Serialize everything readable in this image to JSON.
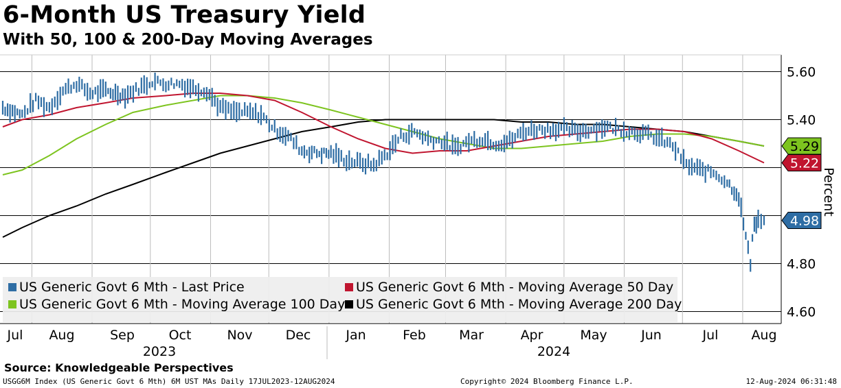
{
  "header": {
    "title": "6-Month US Treasury Yield",
    "subtitle": "With 50, 100 & 200-Day Moving Averages"
  },
  "footer": {
    "source": "Source: Knowledgeable Perspectives",
    "index_info": "USGG6M Index (US Generic Govt 6 Mth) 6M UST MAs  Daily 17JUL2023-12AUG2024",
    "copyright": "Copyright© 2024 Bloomberg Finance L.P.",
    "timestamp": "12-Aug-2024 06:31:48"
  },
  "colors": {
    "last_price": "#2e6da4",
    "ma50": "#c0152f",
    "ma100": "#7dc41f",
    "ma200": "#000000",
    "grid": "#000000"
  },
  "chart_data": {
    "type": "line",
    "title": "6-Month US Treasury Yield",
    "ylabel": "Percent",
    "ylim": [
      4.55,
      5.67
    ],
    "yticks": [
      5.6,
      5.4,
      5.2,
      5.0,
      4.8,
      4.6
    ],
    "ytick_labels": [
      "5.60",
      "5.40",
      "",
      "",
      "4.80",
      "4.60"
    ],
    "xlim": [
      "2023-07-17",
      "2024-08-12"
    ],
    "months": [
      {
        "label": "Jul",
        "date": "2023-07-17"
      },
      {
        "label": "Aug",
        "date": "2023-08-01"
      },
      {
        "label": "Sep",
        "date": "2023-09-01"
      },
      {
        "label": "Oct",
        "date": "2023-10-01"
      },
      {
        "label": "Nov",
        "date": "2023-11-01"
      },
      {
        "label": "Dec",
        "date": "2023-12-01"
      },
      {
        "label": "Jan",
        "date": "2024-01-01"
      },
      {
        "label": "Feb",
        "date": "2024-02-01"
      },
      {
        "label": "Mar",
        "date": "2024-03-01"
      },
      {
        "label": "Apr",
        "date": "2024-04-01"
      },
      {
        "label": "May",
        "date": "2024-05-01"
      },
      {
        "label": "Jun",
        "date": "2024-06-01"
      },
      {
        "label": "Jul",
        "date": "2024-07-01"
      },
      {
        "label": "Aug",
        "date": "2024-08-01"
      }
    ],
    "years": [
      {
        "label": "2023",
        "date": "2023-10-01"
      },
      {
        "label": "2024",
        "date": "2024-04-01"
      }
    ],
    "legend": [
      "US Generic Govt 6 Mth - Last Price",
      "US Generic Govt 6 Mth - Moving Average 50 Day",
      "US Generic Govt 6 Mth - Moving Average 100 Day",
      "US Generic Govt 6 Mth - Moving Average 200 Day"
    ],
    "end_labels": [
      {
        "series": "ma100",
        "value": "5.29"
      },
      {
        "series": "ma50",
        "value": "5.22"
      },
      {
        "series": "last_price",
        "value": "4.98"
      }
    ],
    "series": [
      {
        "name": "US Generic Govt 6 Mth - Last Price",
        "key": "last_price",
        "points": [
          [
            "2023-07-17",
            5.45
          ],
          [
            "2023-07-27",
            5.42
          ],
          [
            "2023-08-03",
            5.48
          ],
          [
            "2023-08-10",
            5.45
          ],
          [
            "2023-08-17",
            5.52
          ],
          [
            "2023-08-24",
            5.55
          ],
          [
            "2023-08-31",
            5.51
          ],
          [
            "2023-09-08",
            5.52
          ],
          [
            "2023-09-18",
            5.5
          ],
          [
            "2023-09-25",
            5.53
          ],
          [
            "2023-10-02",
            5.56
          ],
          [
            "2023-10-09",
            5.55
          ],
          [
            "2023-10-16",
            5.55
          ],
          [
            "2023-10-23",
            5.53
          ],
          [
            "2023-10-30",
            5.52
          ],
          [
            "2023-11-06",
            5.45
          ],
          [
            "2023-11-13",
            5.43
          ],
          [
            "2023-11-20",
            5.43
          ],
          [
            "2023-11-27",
            5.42
          ],
          [
            "2023-12-04",
            5.36
          ],
          [
            "2023-12-11",
            5.33
          ],
          [
            "2023-12-18",
            5.27
          ],
          [
            "2023-12-27",
            5.26
          ],
          [
            "2024-01-02",
            5.26
          ],
          [
            "2024-01-10",
            5.23
          ],
          [
            "2024-01-17",
            5.22
          ],
          [
            "2024-01-24",
            5.21
          ],
          [
            "2024-01-31",
            5.26
          ],
          [
            "2024-02-07",
            5.33
          ],
          [
            "2024-02-14",
            5.35
          ],
          [
            "2024-02-21",
            5.32
          ],
          [
            "2024-02-28",
            5.31
          ],
          [
            "2024-03-06",
            5.28
          ],
          [
            "2024-03-13",
            5.31
          ],
          [
            "2024-03-20",
            5.32
          ],
          [
            "2024-03-27",
            5.3
          ],
          [
            "2024-04-03",
            5.31
          ],
          [
            "2024-04-10",
            5.35
          ],
          [
            "2024-04-17",
            5.36
          ],
          [
            "2024-04-24",
            5.36
          ],
          [
            "2024-05-01",
            5.36
          ],
          [
            "2024-05-08",
            5.35
          ],
          [
            "2024-05-15",
            5.36
          ],
          [
            "2024-05-22",
            5.37
          ],
          [
            "2024-05-29",
            5.36
          ],
          [
            "2024-06-05",
            5.35
          ],
          [
            "2024-06-12",
            5.34
          ],
          [
            "2024-06-19",
            5.32
          ],
          [
            "2024-06-26",
            5.29
          ],
          [
            "2024-07-03",
            5.21
          ],
          [
            "2024-07-10",
            5.19
          ],
          [
            "2024-07-17",
            5.18
          ],
          [
            "2024-07-24",
            5.14
          ],
          [
            "2024-07-30",
            5.08
          ],
          [
            "2024-08-05",
            4.8
          ],
          [
            "2024-08-06",
            4.92
          ],
          [
            "2024-08-07",
            4.96
          ],
          [
            "2024-08-09",
            4.98
          ],
          [
            "2024-08-12",
            4.98
          ]
        ]
      },
      {
        "name": "US Generic Govt 6 Mth - Moving Average 50 Day",
        "key": "ma50",
        "points": [
          [
            "2023-07-17",
            5.37
          ],
          [
            "2023-07-27",
            5.4
          ],
          [
            "2023-08-10",
            5.42
          ],
          [
            "2023-08-24",
            5.45
          ],
          [
            "2023-09-08",
            5.47
          ],
          [
            "2023-09-22",
            5.49
          ],
          [
            "2023-10-09",
            5.5
          ],
          [
            "2023-10-23",
            5.51
          ],
          [
            "2023-11-06",
            5.51
          ],
          [
            "2023-11-20",
            5.5
          ],
          [
            "2023-12-04",
            5.48
          ],
          [
            "2023-12-18",
            5.43
          ],
          [
            "2024-01-02",
            5.37
          ],
          [
            "2024-01-16",
            5.32
          ],
          [
            "2024-01-30",
            5.28
          ],
          [
            "2024-02-13",
            5.26
          ],
          [
            "2024-02-27",
            5.27
          ],
          [
            "2024-03-12",
            5.27
          ],
          [
            "2024-03-26",
            5.29
          ],
          [
            "2024-04-09",
            5.31
          ],
          [
            "2024-04-23",
            5.33
          ],
          [
            "2024-05-07",
            5.34
          ],
          [
            "2024-05-21",
            5.35
          ],
          [
            "2024-06-04",
            5.36
          ],
          [
            "2024-06-18",
            5.36
          ],
          [
            "2024-07-02",
            5.35
          ],
          [
            "2024-07-16",
            5.32
          ],
          [
            "2024-07-30",
            5.27
          ],
          [
            "2024-08-12",
            5.22
          ]
        ]
      },
      {
        "name": "US Generic Govt 6 Mth - Moving Average 100 Day",
        "key": "ma100",
        "points": [
          [
            "2023-07-17",
            5.17
          ],
          [
            "2023-07-27",
            5.19
          ],
          [
            "2023-08-10",
            5.25
          ],
          [
            "2023-08-24",
            5.32
          ],
          [
            "2023-09-08",
            5.38
          ],
          [
            "2023-09-22",
            5.43
          ],
          [
            "2023-10-09",
            5.46
          ],
          [
            "2023-10-23",
            5.48
          ],
          [
            "2023-11-06",
            5.5
          ],
          [
            "2023-11-20",
            5.5
          ],
          [
            "2023-12-04",
            5.49
          ],
          [
            "2023-12-18",
            5.47
          ],
          [
            "2024-01-02",
            5.44
          ],
          [
            "2024-01-16",
            5.41
          ],
          [
            "2024-01-30",
            5.38
          ],
          [
            "2024-02-13",
            5.35
          ],
          [
            "2024-02-27",
            5.32
          ],
          [
            "2024-03-12",
            5.3
          ],
          [
            "2024-03-26",
            5.28
          ],
          [
            "2024-04-09",
            5.28
          ],
          [
            "2024-04-23",
            5.29
          ],
          [
            "2024-05-07",
            5.3
          ],
          [
            "2024-05-21",
            5.31
          ],
          [
            "2024-06-04",
            5.33
          ],
          [
            "2024-06-18",
            5.34
          ],
          [
            "2024-07-02",
            5.34
          ],
          [
            "2024-07-16",
            5.33
          ],
          [
            "2024-07-30",
            5.31
          ],
          [
            "2024-08-12",
            5.29
          ]
        ]
      },
      {
        "name": "US Generic Govt 6 Mth - Moving Average 200 Day",
        "key": "ma200",
        "points": [
          [
            "2023-07-17",
            4.91
          ],
          [
            "2023-07-27",
            4.95
          ],
          [
            "2023-08-10",
            5.0
          ],
          [
            "2023-08-24",
            5.04
          ],
          [
            "2023-09-08",
            5.09
          ],
          [
            "2023-09-22",
            5.13
          ],
          [
            "2023-10-09",
            5.18
          ],
          [
            "2023-10-23",
            5.22
          ],
          [
            "2023-11-06",
            5.26
          ],
          [
            "2023-11-20",
            5.29
          ],
          [
            "2023-12-04",
            5.32
          ],
          [
            "2023-12-18",
            5.35
          ],
          [
            "2024-01-02",
            5.37
          ],
          [
            "2024-01-16",
            5.39
          ],
          [
            "2024-01-30",
            5.4
          ],
          [
            "2024-02-13",
            5.4
          ],
          [
            "2024-02-27",
            5.4
          ],
          [
            "2024-03-12",
            5.4
          ],
          [
            "2024-03-26",
            5.4
          ],
          [
            "2024-04-09",
            5.39
          ],
          [
            "2024-04-23",
            5.39
          ],
          [
            "2024-05-07",
            5.38
          ],
          [
            "2024-05-21",
            5.38
          ],
          [
            "2024-06-04",
            5.37
          ],
          [
            "2024-06-18",
            5.36
          ],
          [
            "2024-07-02",
            5.35
          ],
          [
            "2024-07-16",
            5.33
          ],
          [
            "2024-07-30",
            5.31
          ],
          [
            "2024-08-12",
            5.29
          ]
        ]
      }
    ]
  }
}
